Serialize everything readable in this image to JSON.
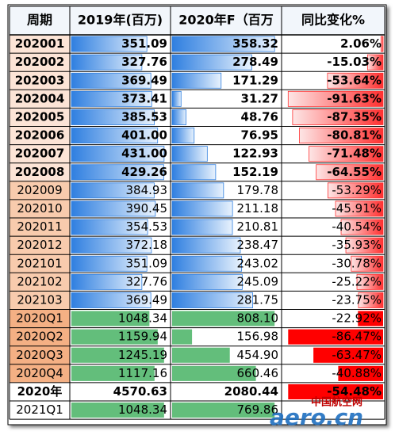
{
  "table": {
    "header": [
      "周期",
      "2019年(百万)",
      "2020年F（百万",
      "同比变化%"
    ],
    "rows": [
      [
        "202001",
        {
          "value": 351.09,
          "label": "351.09"
        },
        {
          "value": 358.32,
          "label": "358.32"
        },
        {
          "value": 2.06,
          "label": "2.06%"
        }
      ],
      [
        "202002",
        {
          "value": 327.76,
          "label": "327.76"
        },
        {
          "value": 278.49,
          "label": "278.49"
        },
        {
          "value": -15.03,
          "label": "-15.03%"
        }
      ],
      [
        "202003",
        {
          "value": 369.49,
          "label": "369.49"
        },
        {
          "value": 171.29,
          "label": "171.29"
        },
        {
          "value": -53.64,
          "label": "-53.64%"
        }
      ],
      [
        "202004",
        {
          "value": 373.41,
          "label": "373.41"
        },
        {
          "value": 31.27,
          "label": "31.27"
        },
        {
          "value": -91.63,
          "label": "-91.63%"
        }
      ],
      [
        "202005",
        {
          "value": 385.53,
          "label": "385.53"
        },
        {
          "value": 48.76,
          "label": "48.76"
        },
        {
          "value": -87.35,
          "label": "-87.35%"
        }
      ],
      [
        "202006",
        {
          "value": 401,
          "label": "401.00"
        },
        {
          "value": 76.95,
          "label": "76.95"
        },
        {
          "value": -80.81,
          "label": "-80.81%"
        }
      ],
      [
        "202007",
        {
          "value": 431,
          "label": "431.00"
        },
        {
          "value": 122.93,
          "label": "122.93"
        },
        {
          "value": -71.48,
          "label": "-71.48%"
        }
      ],
      [
        "202008",
        {
          "value": 429.26,
          "label": "429.26"
        },
        {
          "value": 152.19,
          "label": "152.19"
        },
        {
          "value": -64.55,
          "label": "-64.55%"
        }
      ],
      [
        "202009",
        {
          "value": 384.93,
          "label": "384.93"
        },
        {
          "value": 179.78,
          "label": "179.78"
        },
        {
          "value": -53.29,
          "label": "-53.29%"
        }
      ],
      [
        "202010",
        {
          "value": 390.45,
          "label": "390.45"
        },
        {
          "value": 211.18,
          "label": "211.18"
        },
        {
          "value": -45.91,
          "label": "-45.91%"
        }
      ],
      [
        "202011",
        {
          "value": 354.53,
          "label": "354.53"
        },
        {
          "value": 210.81,
          "label": "210.81"
        },
        {
          "value": -40.54,
          "label": "-40.54%"
        }
      ],
      [
        "202012",
        {
          "value": 372.18,
          "label": "372.18"
        },
        {
          "value": 238.47,
          "label": "238.47"
        },
        {
          "value": -35.93,
          "label": "-35.93%"
        }
      ],
      [
        "202101",
        {
          "value": 351.09,
          "label": "351.09"
        },
        {
          "value": 243.02,
          "label": "243.02"
        },
        {
          "value": -30.78,
          "label": "-30.78%"
        }
      ],
      [
        "202102",
        {
          "value": 327.76,
          "label": "327.76"
        },
        {
          "value": 245.09,
          "label": "245.09"
        },
        {
          "value": -25.22,
          "label": "-25.22%"
        }
      ],
      [
        "202103",
        {
          "value": 369.49,
          "label": "369.49"
        },
        {
          "value": 281.75,
          "label": "281.75"
        },
        {
          "value": -23.75,
          "label": "-23.75%"
        }
      ],
      [
        "2020Q1",
        {
          "value": 1048.34,
          "label": "1048.34"
        },
        {
          "value": 808.1,
          "label": "808.10"
        },
        {
          "value": -22.92,
          "label": "-22.92%"
        }
      ],
      [
        "2020Q2",
        {
          "value": 1159.94,
          "label": "1159.94"
        },
        {
          "value": 156.98,
          "label": "156.98"
        },
        {
          "value": -86.47,
          "label": "-86.47%"
        }
      ],
      [
        "2020Q3",
        {
          "value": 1245.19,
          "label": "1245.19"
        },
        {
          "value": 454.9,
          "label": "454.90"
        },
        {
          "value": -63.47,
          "label": "-63.47%"
        }
      ],
      [
        "2020Q4",
        {
          "value": 1117.16,
          "label": "1117.16"
        },
        {
          "value": 660.46,
          "label": "660.46"
        },
        {
          "value": -40.88,
          "label": "-40.88%"
        }
      ],
      [
        "2020年",
        {
          "value": 4570.63,
          "label": "4570.63"
        },
        {
          "value": 2080.44,
          "label": "2080.44"
        },
        {
          "value": -54.48,
          "label": "-54.48%"
        }
      ],
      [
        "2021Q1",
        {
          "value": 1048.34,
          "label": "1048.34"
        },
        {
          "value": 769.86,
          "label": "769.86"
        }
      ]
    ]
  },
  "watermark": {
    "cn": "中国航空网",
    "en": "aero.cn"
  }
}
